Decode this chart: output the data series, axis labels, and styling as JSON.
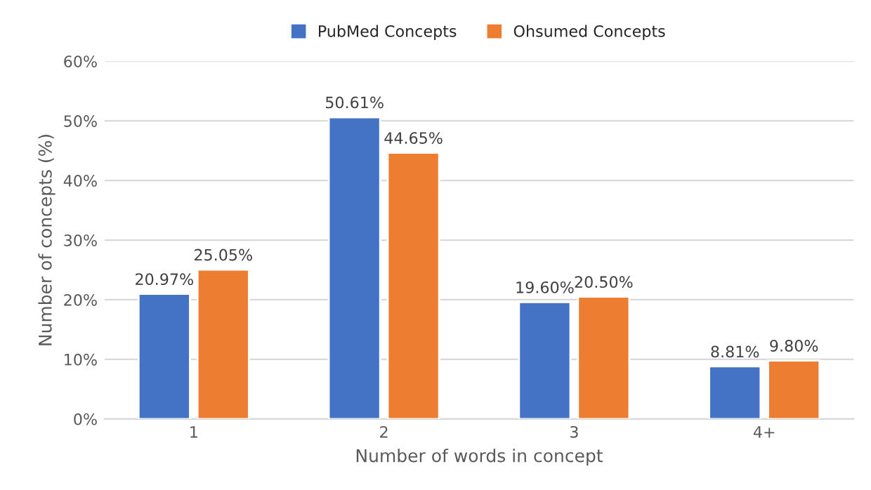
{
  "chart_data": {
    "type": "bar",
    "xlabel": "Number of words in concept",
    "ylabel": "Number of concepts (%)",
    "categories": [
      "1",
      "2",
      "3",
      "4+"
    ],
    "series": [
      {
        "name": "PubMed Concepts",
        "color": "#4472c4",
        "values": [
          20.97,
          50.61,
          19.6,
          8.81
        ],
        "value_labels": [
          "20.97%",
          "50.61%",
          "19.60%",
          "8.81%"
        ]
      },
      {
        "name": "Ohsumed Concepts",
        "color": "#ed7d31",
        "values": [
          25.05,
          44.65,
          20.5,
          9.8
        ],
        "value_labels": [
          "25.05%",
          "44.65%",
          "20.50%",
          "9.80%"
        ]
      }
    ],
    "ylim": [
      0,
      60
    ],
    "yticks": [
      {
        "value": 0,
        "label": "0%"
      },
      {
        "value": 10,
        "label": "10%"
      },
      {
        "value": 20,
        "label": "20%"
      },
      {
        "value": 30,
        "label": "30%"
      },
      {
        "value": 40,
        "label": "40%"
      },
      {
        "value": 50,
        "label": "50%"
      },
      {
        "value": 60,
        "label": "60%"
      }
    ],
    "grid": "y",
    "legend": "top"
  }
}
